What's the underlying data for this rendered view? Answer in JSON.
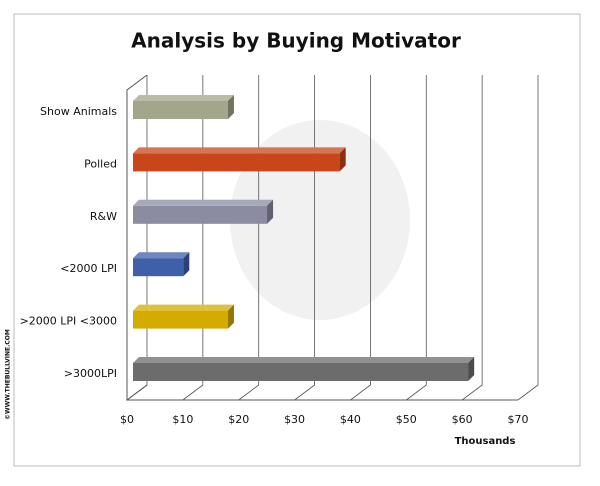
{
  "chart_data": {
    "type": "bar3d",
    "title": "Analysis by Buying Motivator",
    "x_label": "Thousands",
    "watermark": "©WWW.THEBULLVINE.COM",
    "categories": [
      "Show Animals",
      "Polled",
      "R&W",
      "<2000 LPI",
      ">2000 LPI <3000",
      ">3000LPI"
    ],
    "values": [
      17,
      37,
      24,
      9,
      17,
      60
    ],
    "colors": [
      "#a4a68b",
      "#c9461b",
      "#8b8ba1",
      "#3f5fa9",
      "#d6ab00",
      "#6c6c6c"
    ],
    "xlim": [
      0,
      70
    ],
    "xticks": [
      {
        "value": 0,
        "label": "$0"
      },
      {
        "value": 10,
        "label": "$10"
      },
      {
        "value": 20,
        "label": "$20"
      },
      {
        "value": 30,
        "label": "$30"
      },
      {
        "value": 40,
        "label": "$40"
      },
      {
        "value": 50,
        "label": "$50"
      },
      {
        "value": 60,
        "label": "$60"
      },
      {
        "value": 70,
        "label": "$70"
      }
    ],
    "grid": true
  }
}
